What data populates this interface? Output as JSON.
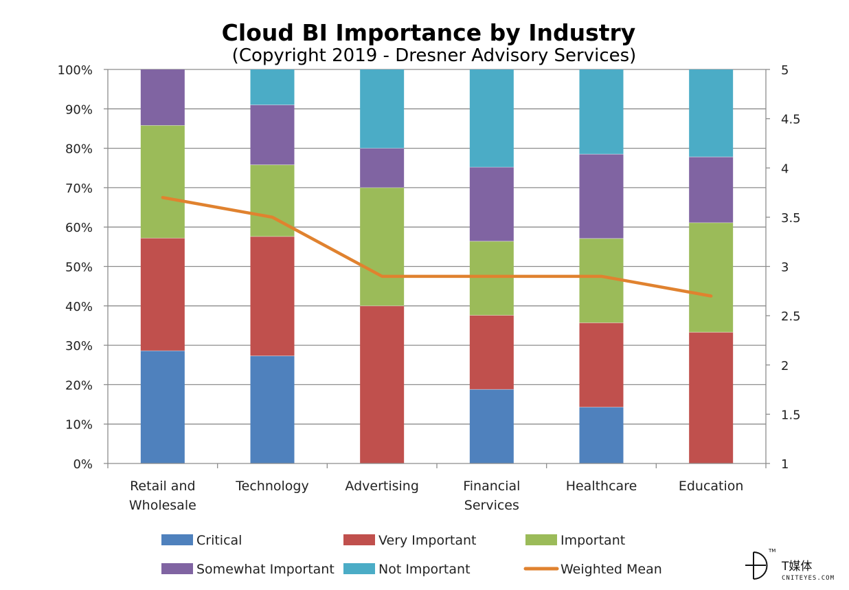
{
  "chart_data": {
    "type": "bar",
    "stacked": true,
    "title": "Cloud BI Importance by Industry",
    "subtitle": "(Copyright 2019 - Dresner Advisory Services)",
    "categories": [
      [
        "Retail and",
        "Wholesale"
      ],
      [
        "Technology"
      ],
      [
        "Advertising"
      ],
      [
        "Financial",
        "Services"
      ],
      [
        "Healthcare"
      ],
      [
        "Education"
      ]
    ],
    "series": [
      {
        "name": "Critical",
        "color": "#4f81bd",
        "values": [
          28.6,
          27.3,
          0,
          18.8,
          14.3,
          0
        ]
      },
      {
        "name": "Very Important",
        "color": "#c0504d",
        "values": [
          28.6,
          30.3,
          40,
          18.8,
          21.4,
          33.3
        ]
      },
      {
        "name": "Important",
        "color": "#9bbb59",
        "values": [
          28.6,
          18.2,
          30,
          18.8,
          21.4,
          27.8
        ]
      },
      {
        "name": "Somewhat Important",
        "color": "#8064a2",
        "values": [
          14.2,
          15.2,
          10,
          18.8,
          21.4,
          16.7
        ]
      },
      {
        "name": "Not Important",
        "color": "#4bacc6",
        "values": [
          0,
          9.0,
          20,
          24.8,
          21.5,
          22.2
        ]
      }
    ],
    "line": {
      "name": "Weighted Mean",
      "color": "#e0822f",
      "values": [
        3.7,
        3.5,
        2.9,
        2.9,
        2.9,
        2.7
      ],
      "axis": "right"
    },
    "yaxis_left": {
      "ticks": [
        "0%",
        "10%",
        "20%",
        "30%",
        "40%",
        "50%",
        "60%",
        "70%",
        "80%",
        "90%",
        "100%"
      ],
      "ylim": [
        0,
        100
      ]
    },
    "yaxis_right": {
      "ticks": [
        "1",
        "1.5",
        "2",
        "2.5",
        "3",
        "3.5",
        "4",
        "4.5",
        "5"
      ],
      "ylim": [
        1,
        5
      ]
    },
    "grid": true,
    "legend_position": "bottom"
  },
  "watermark": {
    "brand": "T媒体",
    "domain": "CNITEYES.COM",
    "mark": "TM"
  }
}
